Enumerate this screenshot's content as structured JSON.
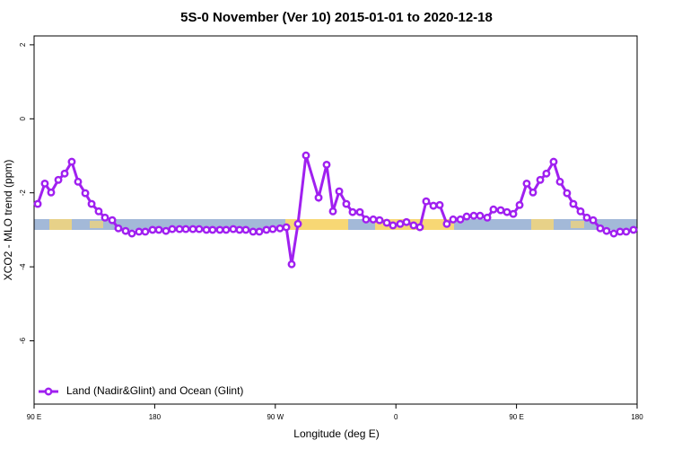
{
  "chart_data": {
    "type": "line",
    "title": "5S-0 November (Ver 10)   2015-01-01 to 2020-12-18",
    "x_label": "Longitude (deg E)",
    "y_label": "XCO2 - MLO trend (ppm)",
    "x": [
      92.7,
      98.0,
      102.7,
      108.1,
      112.8,
      118.1,
      122.8,
      128.2,
      132.9,
      138.2,
      142.9,
      148.3,
      152.9,
      158.3,
      163.0,
      168.3,
      173.0,
      178.4,
      183.1,
      188.4,
      193.1,
      198.5,
      203.2,
      208.5,
      213.2,
      218.6,
      223.2,
      228.6,
      233.3,
      238.6,
      243.3,
      248.0,
      253.4,
      258.1,
      263.4,
      268.1,
      273.5,
      278.2,
      282.2,
      286.9,
      292.9,
      302.3,
      308.3,
      313.0,
      317.7,
      323.0,
      327.7,
      333.1,
      337.7,
      343.1,
      347.8,
      353.2,
      357.8,
      363.2,
      367.9,
      373.2,
      377.9,
      382.6,
      388.0,
      392.7,
      398.0,
      402.7,
      408.1,
      412.8,
      418.1,
      422.8,
      428.2,
      432.8,
      438.2,
      442.9,
      447.6,
      452.3,
      457.6,
      462.3,
      467.7,
      472.3,
      477.7,
      482.4,
      487.7,
      492.4,
      497.8,
      502.5,
      507.2,
      512.5,
      517.2,
      522.6,
      527.3,
      531.9,
      537.3
    ],
    "series": [
      {
        "name": "Land (Nadir&Glint) and Ocean (Glint)",
        "color": "#a020f0",
        "values": [
          -2.3,
          -1.75,
          -1.99,
          -1.65,
          -1.48,
          -1.16,
          -1.7,
          -2.01,
          -2.3,
          -2.5,
          -2.67,
          -2.74,
          -2.96,
          -3.03,
          -3.1,
          -3.05,
          -3.05,
          -3.0,
          -3.0,
          -3.03,
          -2.98,
          -2.98,
          -2.98,
          -2.98,
          -2.98,
          -3.0,
          -3.0,
          -3.0,
          -3.0,
          -2.98,
          -3.0,
          -3.0,
          -3.05,
          -3.05,
          -3.0,
          -2.98,
          -2.96,
          -2.93,
          -3.93,
          -2.84,
          -0.99,
          -2.13,
          -1.24,
          -2.5,
          -1.96,
          -2.3,
          -2.52,
          -2.52,
          -2.72,
          -2.72,
          -2.74,
          -2.81,
          -2.88,
          -2.84,
          -2.79,
          -2.88,
          -2.93,
          -2.23,
          -2.35,
          -2.33,
          -2.84,
          -2.72,
          -2.72,
          -2.64,
          -2.62,
          -2.62,
          -2.67,
          -2.45,
          -2.47,
          -2.52,
          -2.57,
          -2.33,
          -1.75,
          -1.99,
          -1.65,
          -1.48,
          -1.16,
          -1.7,
          -2.01,
          -2.3,
          -2.5,
          -2.67,
          -2.74,
          -2.96,
          -3.03,
          -3.1,
          -3.05,
          -3.05,
          -3.0
        ]
      }
    ],
    "xlim": [
      90,
      540
    ],
    "xticks": [
      {
        "value": 90,
        "label": "90 E"
      },
      180,
      {
        "value": 270,
        "label": "90 W"
      },
      {
        "value": 360,
        "label": "0"
      },
      {
        "value": 450,
        "label": "90 E"
      },
      {
        "value": 540,
        "label": "180"
      }
    ],
    "ylim": [
      -7.71,
      2.24
    ],
    "yticks": [
      2,
      0,
      -2,
      -4,
      -6
    ],
    "legend": "bottom-left"
  }
}
